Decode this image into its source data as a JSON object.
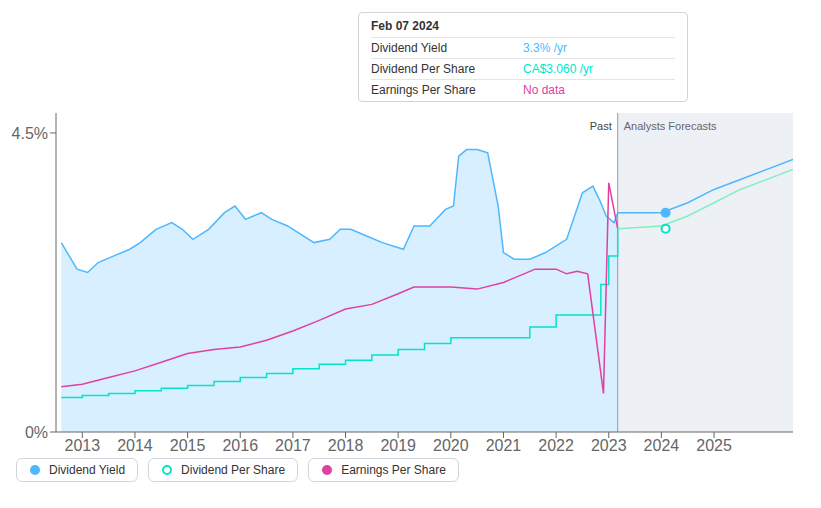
{
  "chart_data": {
    "type": "line",
    "xlim": [
      2012.5,
      2026.5
    ],
    "xticks": [
      2013,
      2014,
      2015,
      2016,
      2017,
      2018,
      2019,
      2020,
      2021,
      2022,
      2023,
      2024,
      2025
    ],
    "ylim": [
      0,
      4.8
    ],
    "yticks": [
      {
        "value": 0,
        "label": "0%"
      },
      {
        "value": 4.5,
        "label": "4.5%"
      }
    ],
    "legend": "bottom",
    "forecast": {
      "start": 2023.17,
      "past_label": "Past",
      "label": "Analysts Forecasts"
    },
    "series": [
      {
        "name": "Dividend Yield",
        "type": "area",
        "color": "#4db8ff",
        "marker": "circle",
        "x": [
          2012.6,
          2012.9,
          2013.1,
          2013.3,
          2013.6,
          2013.9,
          2014.1,
          2014.4,
          2014.7,
          2014.9,
          2015.1,
          2015.4,
          2015.7,
          2015.9,
          2016.1,
          2016.4,
          2016.6,
          2016.9,
          2017.1,
          2017.4,
          2017.7,
          2017.9,
          2018.1,
          2018.4,
          2018.7,
          2018.9,
          2019.1,
          2019.3,
          2019.6,
          2019.9,
          2020.05,
          2020.15,
          2020.3,
          2020.5,
          2020.7,
          2020.9,
          2021.0,
          2021.2,
          2021.5,
          2021.8,
          2022.0,
          2022.2,
          2022.5,
          2022.7,
          2022.85,
          2022.95,
          2023.1,
          2023.17
        ],
        "values": [
          2.85,
          2.45,
          2.4,
          2.55,
          2.65,
          2.75,
          2.85,
          3.05,
          3.15,
          3.05,
          2.9,
          3.05,
          3.3,
          3.4,
          3.2,
          3.3,
          3.2,
          3.1,
          3.0,
          2.85,
          2.9,
          3.05,
          3.05,
          2.95,
          2.85,
          2.8,
          2.75,
          3.1,
          3.1,
          3.35,
          3.4,
          4.15,
          4.25,
          4.25,
          4.2,
          3.4,
          2.7,
          2.6,
          2.6,
          2.7,
          2.8,
          2.9,
          3.6,
          3.7,
          3.45,
          3.25,
          3.15,
          3.3
        ],
        "forecast_x": [
          2023.17,
          2024.0,
          2024.5,
          2025.0,
          2025.5,
          2026.5
        ],
        "forecast_values": [
          3.3,
          3.3,
          3.45,
          3.65,
          3.8,
          4.1
        ],
        "forecast_color": "#4db8ff"
      },
      {
        "name": "Dividend Per Share",
        "type": "step",
        "color": "#00e5cc",
        "marker": "open_circle",
        "x": [
          2012.6,
          2013.0,
          2013.5,
          2014.0,
          2014.5,
          2015.0,
          2015.5,
          2016.0,
          2016.5,
          2017.0,
          2017.5,
          2018.0,
          2018.5,
          2019.0,
          2019.5,
          2020.0,
          2020.5,
          2021.0,
          2021.5,
          2022.0,
          2022.5,
          2022.85,
          2023.0,
          2023.17
        ],
        "values": [
          0.52,
          0.55,
          0.58,
          0.62,
          0.66,
          0.7,
          0.76,
          0.82,
          0.88,
          0.95,
          1.02,
          1.08,
          1.16,
          1.24,
          1.33,
          1.42,
          1.42,
          1.42,
          1.58,
          1.76,
          1.76,
          2.22,
          2.65,
          3.06
        ],
        "forecast_x": [
          2023.17,
          2024.0,
          2024.5,
          2025.0,
          2025.5,
          2026.5
        ],
        "forecast_values": [
          3.06,
          3.1,
          3.25,
          3.45,
          3.65,
          3.95
        ],
        "forecast_color": "#80f0c0"
      },
      {
        "name": "Earnings Per Share",
        "type": "line",
        "color": "#e040a0",
        "marker": "circle",
        "x": [
          2012.6,
          2013.0,
          2013.5,
          2014.0,
          2014.5,
          2015.0,
          2015.5,
          2016.0,
          2016.5,
          2017.0,
          2017.5,
          2018.0,
          2018.5,
          2019.0,
          2019.3,
          2019.6,
          2020.0,
          2020.5,
          2021.0,
          2021.3,
          2021.6,
          2022.0,
          2022.2,
          2022.4,
          2022.6,
          2022.9,
          2023.0,
          2023.17
        ],
        "values": [
          0.68,
          0.72,
          0.82,
          0.92,
          1.05,
          1.18,
          1.24,
          1.28,
          1.38,
          1.52,
          1.68,
          1.85,
          1.92,
          2.08,
          2.18,
          2.18,
          2.18,
          2.15,
          2.25,
          2.35,
          2.45,
          2.45,
          2.38,
          2.42,
          2.38,
          0.58,
          3.75,
          3.06
        ]
      }
    ],
    "highlight": {
      "x": 2024.08,
      "values": [
        3.3,
        3.06
      ]
    },
    "tooltip": {
      "title": "Feb 07 2024",
      "rows": [
        {
          "label": "Dividend Yield",
          "value": "3.3% /yr"
        },
        {
          "label": "Dividend Per Share",
          "value": "CA$3.060 /yr"
        },
        {
          "label": "Earnings Per Share",
          "value": "No data"
        }
      ]
    }
  }
}
